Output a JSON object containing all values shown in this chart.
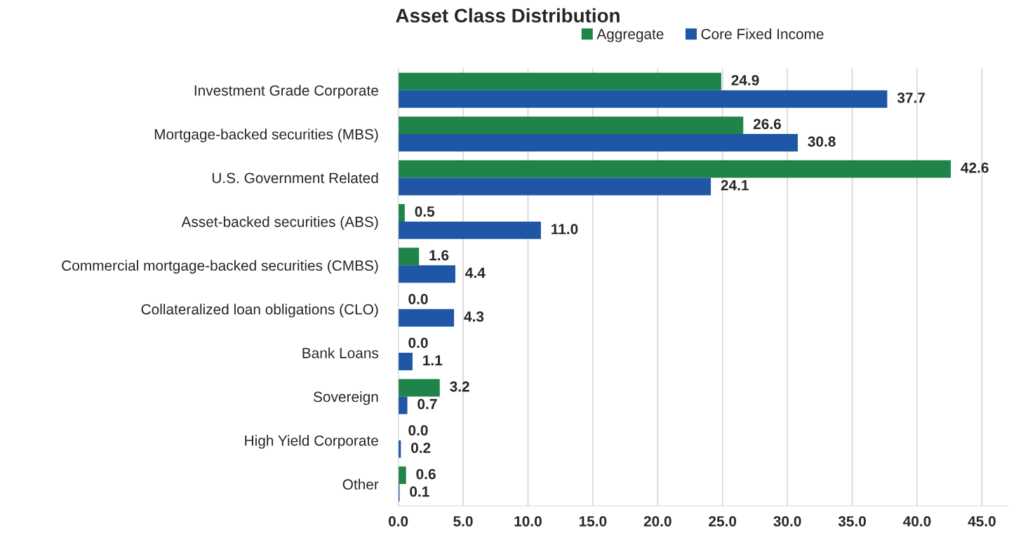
{
  "chart_data": {
    "type": "bar",
    "orientation": "horizontal",
    "title": "Asset Class Distribution",
    "categories": [
      "Investment Grade Corporate",
      "Mortgage-backed securities (MBS)",
      "U.S. Government Related",
      "Asset-backed securities (ABS)",
      "Commercial mortgage-backed securities (CMBS)",
      "Collateralized loan obligations (CLO)",
      "Bank Loans",
      "Sovereign",
      "High Yield Corporate",
      "Other"
    ],
    "series": [
      {
        "name": "Aggregate",
        "color": "#1e8449",
        "values": [
          24.9,
          26.6,
          42.6,
          0.5,
          1.6,
          0.0,
          0.0,
          3.2,
          0.0,
          0.6
        ],
        "value_labels": [
          "24.9",
          "26.6",
          "42.6",
          "0.5",
          "1.6",
          "0.0",
          "0.0",
          "3.2",
          "0.0",
          "0.6"
        ]
      },
      {
        "name": "Core Fixed Income",
        "color": "#1f57a6",
        "values": [
          37.7,
          30.8,
          24.1,
          11.0,
          4.4,
          4.3,
          1.1,
          0.7,
          0.2,
          0.1
        ],
        "value_labels": [
          "37.7",
          "30.8",
          "24.1",
          "11.0",
          "4.4",
          "4.3",
          "1.1",
          "0.7",
          "0.2",
          "0.1"
        ]
      }
    ],
    "xlim": [
      0,
      47
    ],
    "xticks": [
      {
        "value": 0,
        "label": "0.0"
      },
      {
        "value": 5,
        "label": "5.0"
      },
      {
        "value": 10,
        "label": "10.0"
      },
      {
        "value": 15,
        "label": "15.0"
      },
      {
        "value": 20,
        "label": "20.0"
      },
      {
        "value": 25,
        "label": "25.0"
      },
      {
        "value": 30,
        "label": "30.0"
      },
      {
        "value": 35,
        "label": "35.0"
      },
      {
        "value": 40,
        "label": "40.0"
      },
      {
        "value": 45,
        "label": "45.0"
      }
    ],
    "grid": "x",
    "legend": "top"
  }
}
